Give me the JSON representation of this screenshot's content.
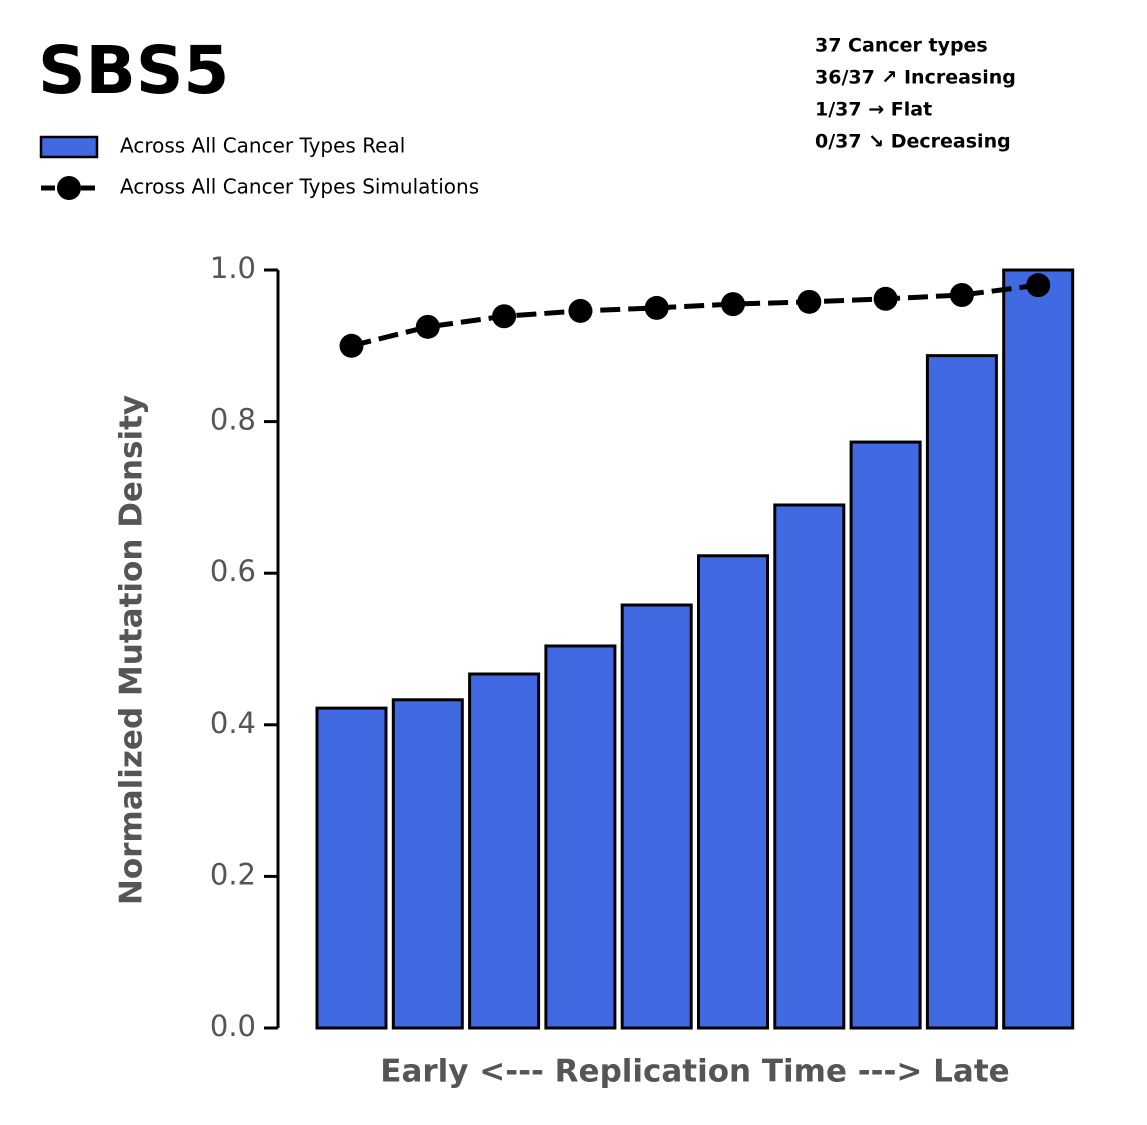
{
  "chart_data": {
    "type": "bar",
    "title": "SBS5",
    "annotations": [
      "37 Cancer types",
      "36/37 ↗ Increasing",
      "1/37 → Flat",
      "0/37 ↘ Decreasing"
    ],
    "x_label": "Early <--- Replication Time ---> Late",
    "y_label": "Normalized Mutation Density",
    "categories": [
      null,
      null,
      null,
      null,
      null,
      null,
      null,
      null,
      null,
      null
    ],
    "series": [
      {
        "name": "Across All Cancer Types Real",
        "type": "bar",
        "color": "#4169e1",
        "values": [
          0.422,
          0.433,
          0.467,
          0.504,
          0.558,
          0.623,
          0.69,
          0.773,
          0.887,
          1.0
        ]
      },
      {
        "name": "Across All Cancer Types Simulations",
        "type": "line",
        "color": "#000000",
        "values": [
          0.9,
          0.925,
          0.939,
          0.946,
          0.95,
          0.955,
          0.958,
          0.962,
          0.967,
          0.98
        ]
      }
    ],
    "ylim": [
      0,
      1
    ],
    "yticks": [
      {
        "value": 0,
        "label": "0.0"
      },
      0.2,
      0.4,
      0.6,
      0.8,
      {
        "value": 1,
        "label": "1.0"
      }
    ],
    "grid": false
  }
}
